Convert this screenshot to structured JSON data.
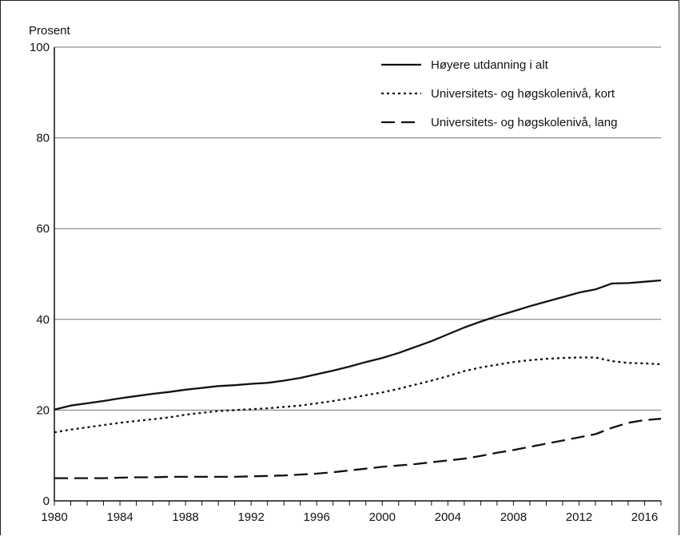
{
  "chart_data": {
    "type": "line",
    "ylabel": "Prosent",
    "ylim": [
      0,
      100
    ],
    "xlim": [
      1980,
      2017
    ],
    "yticks": [
      0,
      20,
      40,
      60,
      80,
      100
    ],
    "xticks": [
      1980,
      1984,
      1988,
      1992,
      1996,
      2000,
      2004,
      2008,
      2012,
      2016
    ],
    "grid": "horizontal",
    "legend_position": "top-right",
    "x": [
      1980,
      1981,
      1982,
      1983,
      1984,
      1985,
      1986,
      1987,
      1988,
      1989,
      1990,
      1991,
      1992,
      1993,
      1994,
      1995,
      1996,
      1997,
      1998,
      1999,
      2000,
      2001,
      2002,
      2003,
      2004,
      2005,
      2006,
      2007,
      2008,
      2009,
      2010,
      2011,
      2012,
      2013,
      2014,
      2015,
      2016,
      2017
    ],
    "series": [
      {
        "name": "Høyere utdanning i alt",
        "style": "solid",
        "color": "#111111",
        "values": [
          20.1,
          21.0,
          21.5,
          22.0,
          22.6,
          23.1,
          23.6,
          24.0,
          24.5,
          24.9,
          25.3,
          25.5,
          25.8,
          26.0,
          26.5,
          27.1,
          27.9,
          28.7,
          29.6,
          30.6,
          31.5,
          32.6,
          33.9,
          35.2,
          36.7,
          38.2,
          39.5,
          40.7,
          41.8,
          42.9,
          43.9,
          44.9,
          45.9,
          46.6,
          47.9,
          48.0,
          48.3,
          48.6
        ]
      },
      {
        "name": "Universitets- og høgskolenivå, kort",
        "style": "dotted",
        "color": "#111111",
        "values": [
          15.1,
          15.7,
          16.2,
          16.7,
          17.2,
          17.6,
          18.0,
          18.4,
          19.0,
          19.4,
          19.8,
          20.0,
          20.2,
          20.4,
          20.7,
          21.0,
          21.5,
          22.0,
          22.6,
          23.3,
          23.9,
          24.7,
          25.6,
          26.5,
          27.5,
          28.6,
          29.4,
          30.0,
          30.6,
          31.0,
          31.3,
          31.5,
          31.6,
          31.6,
          30.8,
          30.4,
          30.3,
          30.1
        ]
      },
      {
        "name": "Universitets- og høgskolenivå, lang",
        "style": "dashed",
        "color": "#111111",
        "values": [
          5.0,
          5.0,
          5.0,
          5.0,
          5.1,
          5.2,
          5.2,
          5.3,
          5.3,
          5.3,
          5.3,
          5.3,
          5.4,
          5.5,
          5.6,
          5.8,
          6.0,
          6.3,
          6.7,
          7.1,
          7.5,
          7.8,
          8.1,
          8.5,
          8.9,
          9.3,
          9.9,
          10.6,
          11.2,
          11.9,
          12.6,
          13.3,
          14.0,
          14.7,
          16.1,
          17.2,
          17.8,
          18.1
        ]
      }
    ]
  }
}
